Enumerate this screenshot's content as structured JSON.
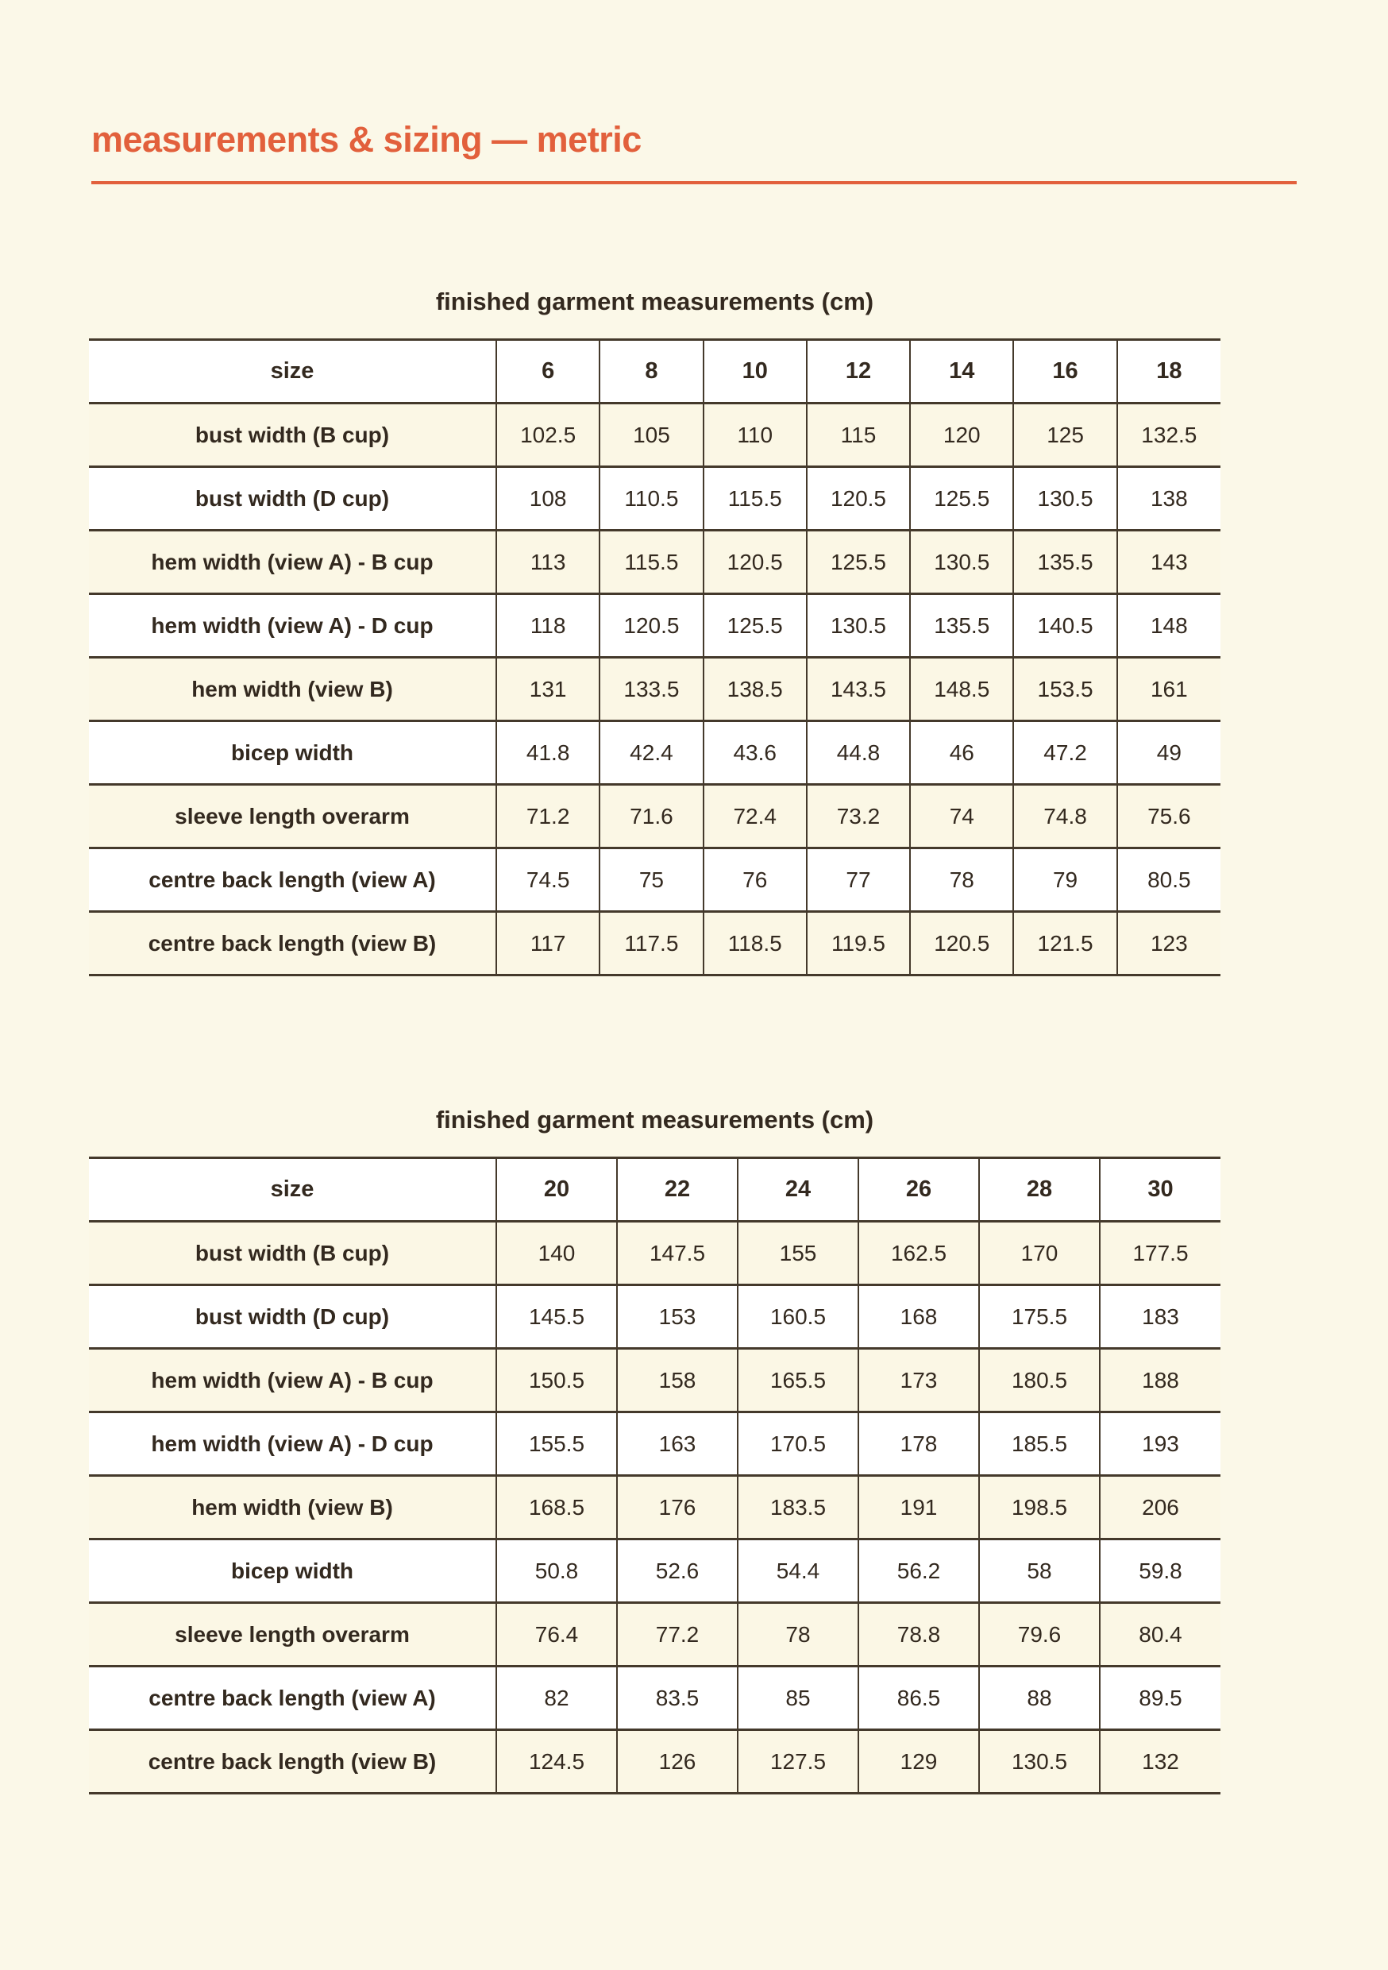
{
  "page": {
    "title": "measurements & sizing — metric",
    "accent_color": "#E2603C",
    "background_color": "#FBF8E8",
    "text_color": "#33291F",
    "row_stripe_color": "#FBF7E5",
    "row_white_color": "#FFFFFF",
    "border_color": "#44392B"
  },
  "tables": [
    {
      "title": "finished garment measurements (cm)",
      "size_label": "size",
      "sizes": [
        "6",
        "8",
        "10",
        "12",
        "14",
        "16",
        "18"
      ],
      "rows": [
        {
          "label": "bust width (B cup)",
          "values": [
            "102.5",
            "105",
            "110",
            "115",
            "120",
            "125",
            "132.5"
          ]
        },
        {
          "label": "bust width (D cup)",
          "values": [
            "108",
            "110.5",
            "115.5",
            "120.5",
            "125.5",
            "130.5",
            "138"
          ]
        },
        {
          "label": "hem width (view A) - B cup",
          "values": [
            "113",
            "115.5",
            "120.5",
            "125.5",
            "130.5",
            "135.5",
            "143"
          ]
        },
        {
          "label": "hem width (view A) - D cup",
          "values": [
            "118",
            "120.5",
            "125.5",
            "130.5",
            "135.5",
            "140.5",
            "148"
          ]
        },
        {
          "label": "hem width (view B)",
          "values": [
            "131",
            "133.5",
            "138.5",
            "143.5",
            "148.5",
            "153.5",
            "161"
          ]
        },
        {
          "label": "bicep width",
          "values": [
            "41.8",
            "42.4",
            "43.6",
            "44.8",
            "46",
            "47.2",
            "49"
          ]
        },
        {
          "label": "sleeve length overarm",
          "values": [
            "71.2",
            "71.6",
            "72.4",
            "73.2",
            "74",
            "74.8",
            "75.6"
          ]
        },
        {
          "label": "centre back length (view A)",
          "values": [
            "74.5",
            "75",
            "76",
            "77",
            "78",
            "79",
            "80.5"
          ]
        },
        {
          "label": "centre back length (view B)",
          "values": [
            "117",
            "117.5",
            "118.5",
            "119.5",
            "120.5",
            "121.5",
            "123"
          ]
        }
      ]
    },
    {
      "title": "finished garment measurements (cm)",
      "size_label": "size",
      "sizes": [
        "20",
        "22",
        "24",
        "26",
        "28",
        "30"
      ],
      "rows": [
        {
          "label": "bust width (B cup)",
          "values": [
            "140",
            "147.5",
            "155",
            "162.5",
            "170",
            "177.5"
          ]
        },
        {
          "label": "bust width (D cup)",
          "values": [
            "145.5",
            "153",
            "160.5",
            "168",
            "175.5",
            "183"
          ]
        },
        {
          "label": "hem width (view A) - B cup",
          "values": [
            "150.5",
            "158",
            "165.5",
            "173",
            "180.5",
            "188"
          ]
        },
        {
          "label": "hem width (view A) - D cup",
          "values": [
            "155.5",
            "163",
            "170.5",
            "178",
            "185.5",
            "193"
          ]
        },
        {
          "label": "hem width (view B)",
          "values": [
            "168.5",
            "176",
            "183.5",
            "191",
            "198.5",
            "206"
          ]
        },
        {
          "label": "bicep width",
          "values": [
            "50.8",
            "52.6",
            "54.4",
            "56.2",
            "58",
            "59.8"
          ]
        },
        {
          "label": "sleeve length overarm",
          "values": [
            "76.4",
            "77.2",
            "78",
            "78.8",
            "79.6",
            "80.4"
          ]
        },
        {
          "label": "centre back length (view A)",
          "values": [
            "82",
            "83.5",
            "85",
            "86.5",
            "88",
            "89.5"
          ]
        },
        {
          "label": "centre back length (view B)",
          "values": [
            "124.5",
            "126",
            "127.5",
            "129",
            "130.5",
            "132"
          ]
        }
      ]
    }
  ]
}
